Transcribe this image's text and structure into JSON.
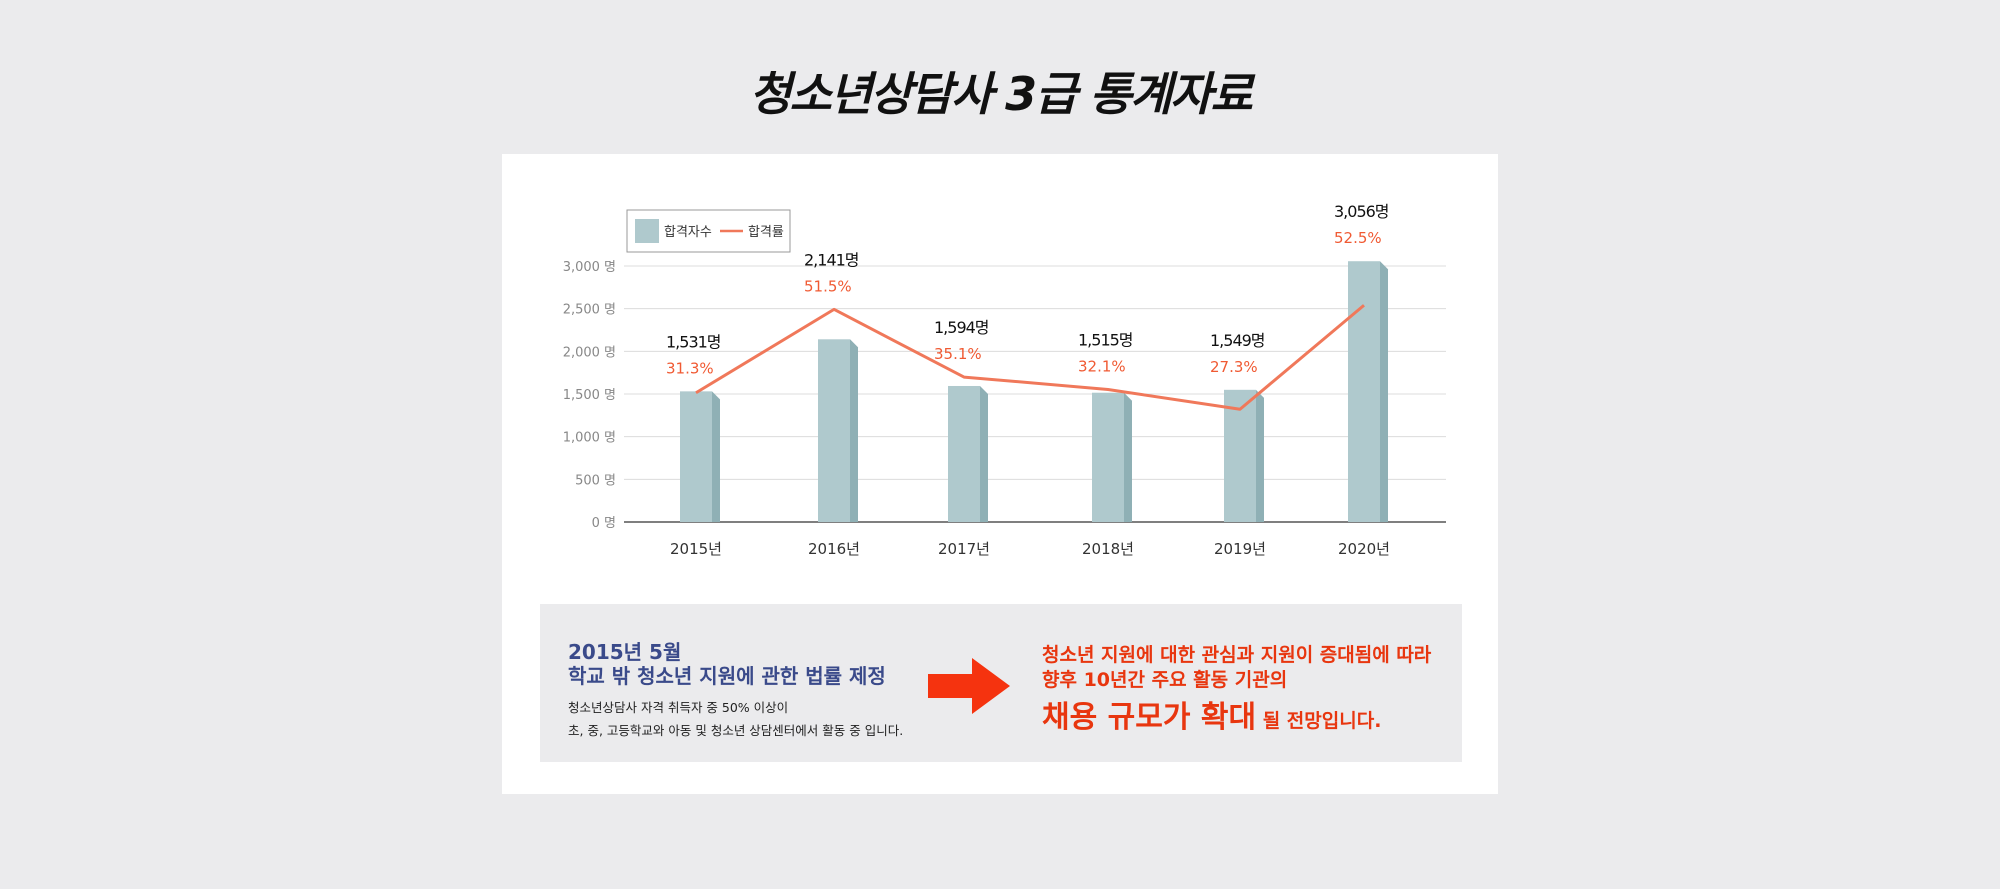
{
  "title": "청소년상담사 3급 통계자료",
  "chart_data": {
    "type": "bar",
    "categories": [
      "2015년",
      "2016년",
      "2017년",
      "2018년",
      "2019년",
      "2020년"
    ],
    "series": [
      {
        "name": "합격자수",
        "type": "bar",
        "values": [
          1531,
          2141,
          1594,
          1515,
          1549,
          3056
        ],
        "labels": [
          "1,531명",
          "2,141명",
          "1,594명",
          "1,515명",
          "1,549명",
          "3,056명"
        ]
      },
      {
        "name": "합격률",
        "type": "line",
        "values": [
          31.3,
          51.5,
          35.1,
          32.1,
          27.3,
          52.5
        ],
        "labels": [
          "31.3%",
          "51.5%",
          "35.1%",
          "32.1%",
          "27.3%",
          "52.5%"
        ]
      }
    ],
    "yticks": [
      "0 명",
      "500 명",
      "1,000 명",
      "1,500 명",
      "2,000 명",
      "2,500 명",
      "3,000 명"
    ],
    "ytick_values": [
      0,
      500,
      1000,
      1500,
      2000,
      2500,
      3000
    ],
    "ylim": [
      0,
      3000
    ],
    "legend_position": "top-left",
    "grid": true,
    "colors": {
      "bar": "#afc9cd",
      "bar_side": "#8fb0b5",
      "line": "#f0785a",
      "pct_label": "#f05a33",
      "count_label": "#111111"
    }
  },
  "info": {
    "date": "2015년 5월",
    "law": "학교 밖 청소년 지원에 관한 법률 제정",
    "desc_line1": "청소년상담사 자격 취득자 중 50% 이상이",
    "desc_line2": "초, 중, 고등학교와 아동 및 청소년 상담센터에서 활동 중 입니다.",
    "outcome_line1": "청소년 지원에 대한 관심과 지원이 증대됨에 따라",
    "outcome_line2": "향후 10년간 주요 활동 기관의",
    "outcome_big": "채용 규모가 확대",
    "outcome_tail": " 될 전망입니다.",
    "colors": {
      "law_text": "#3a4a8a",
      "outcome_text": "#e8360f",
      "arrow": "#f5330f"
    }
  }
}
